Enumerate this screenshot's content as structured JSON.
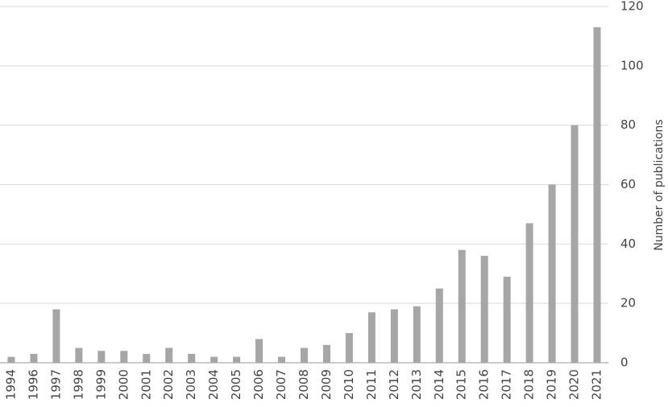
{
  "chart_data": {
    "type": "bar",
    "y_axis_label": "Number of publications",
    "categories": [
      "1994",
      "1996",
      "1997",
      "1998",
      "1999",
      "2000",
      "2001",
      "2002",
      "2003",
      "2004",
      "2005",
      "2006",
      "2007",
      "2008",
      "2009",
      "2010",
      "2011",
      "2012",
      "2013",
      "2014",
      "2015",
      "2016",
      "2017",
      "2018",
      "2019",
      "2020",
      "2021"
    ],
    "values": [
      2,
      3,
      18,
      5,
      4,
      4,
      3,
      5,
      3,
      2,
      2,
      8,
      2,
      5,
      6,
      10,
      17,
      18,
      19,
      25,
      38,
      36,
      29,
      47,
      60,
      80,
      113
    ],
    "color": "#a6a6a6",
    "ylim": [
      0,
      120
    ],
    "yticks": [
      0,
      20,
      40,
      60,
      80,
      100,
      120
    ],
    "grid": true
  }
}
